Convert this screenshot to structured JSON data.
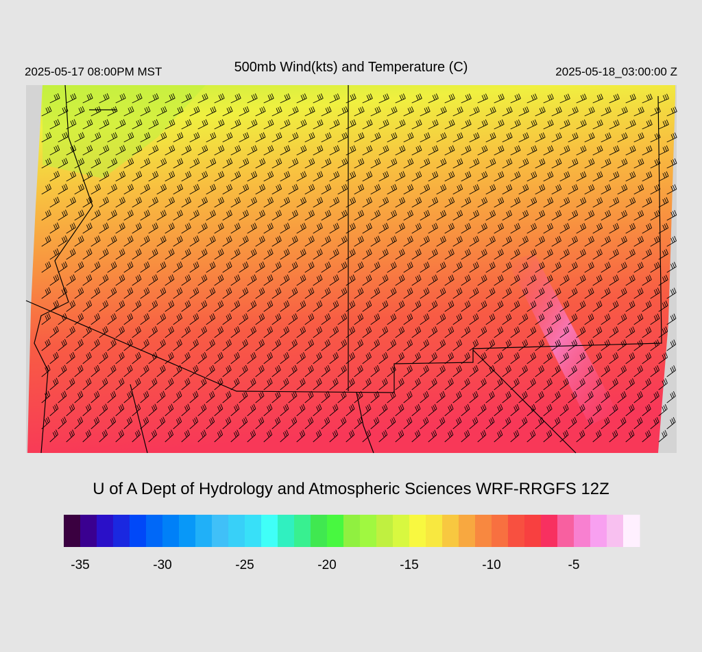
{
  "header": {
    "left": "2025-05-17 08:00PM MST",
    "title": "500mb Wind(kts) and Temperature (C)",
    "right": "2025-05-18_03:00:00 Z"
  },
  "footer": "U of A Dept of Hydrology and Atmospheric Sciences WRF-RRGFS 12Z",
  "colorbar": {
    "bins": [
      -36,
      -35,
      -34,
      -33,
      -32,
      -31,
      -30,
      -29,
      -28,
      -27,
      -26,
      -25,
      -24,
      -23,
      -22,
      -21,
      -20,
      -19,
      -18,
      -17,
      -16,
      -15,
      -14,
      -13,
      -12,
      -11,
      -10,
      -9,
      -8,
      -7,
      -6,
      -5,
      -4,
      -3,
      -2,
      -1
    ],
    "colors": [
      "#3a0040",
      "#3a0090",
      "#2a10c8",
      "#1a28e0",
      "#0048f8",
      "#0068f8",
      "#0080f8",
      "#0898f8",
      "#20b0f8",
      "#40c0f8",
      "#38d0f8",
      "#38e0f8",
      "#40fff8",
      "#30f0c0",
      "#38f090",
      "#40e850",
      "#48f840",
      "#90f040",
      "#a0f840",
      "#c0f040",
      "#d8f840",
      "#f8f840",
      "#f8e840",
      "#f8c840",
      "#f8a840",
      "#f88840",
      "#f87040",
      "#f85040",
      "#f84040",
      "#f83060",
      "#f860a0",
      "#f880d0",
      "#f8a0f0",
      "#f8c0f0",
      "#fff0ff"
    ],
    "ticks": [
      -35,
      -30,
      -25,
      -20,
      -15,
      -10,
      -5
    ]
  }
}
